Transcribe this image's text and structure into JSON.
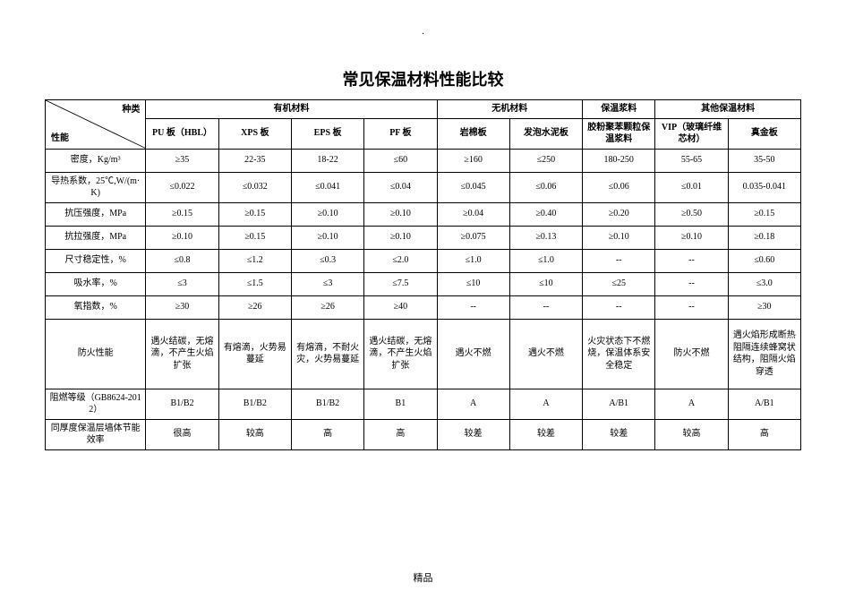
{
  "top_mark": ".",
  "title": "常见保温材料性能比较",
  "diag": {
    "top": "种类",
    "bottom": "性能"
  },
  "group_headers": [
    "有机材料",
    "无机材料",
    "保温浆料",
    "其他保温材料"
  ],
  "sub_headers": [
    "PU 板（HBL）",
    "XPS 板",
    "EPS 板",
    "PF 板",
    "岩棉板",
    "发泡水泥板",
    "胶粉聚苯颗粒保温浆料",
    "VIP（玻璃纤维芯材）",
    "真金板"
  ],
  "rows": [
    {
      "label": "密度，Kg/m³",
      "cells": [
        "≥35",
        "22-35",
        "18-22",
        "≤60",
        "≥160",
        "≤250",
        "180-250",
        "55-65",
        "35-50"
      ]
    },
    {
      "label": "导热系数，25℃,W/(m·K)",
      "cells": [
        "≤0.022",
        "≤0.032",
        "≤0.041",
        "≤0.04",
        "≤0.045",
        "≤0.06",
        "≤0.06",
        "≤0.01",
        "0.035-0.041"
      ]
    },
    {
      "label": "抗压强度，MPa",
      "cells": [
        "≥0.15",
        "≥0.15",
        "≥0.10",
        "≥0.10",
        "≥0.04",
        "≥0.40",
        "≥0.20",
        "≥0.50",
        "≥0.15"
      ]
    },
    {
      "label": "抗拉强度，MPa",
      "cells": [
        "≥0.10",
        "≥0.15",
        "≥0.10",
        "≥0.10",
        "≥0.075",
        "≥0.13",
        "≥0.10",
        "≥0.10",
        "≥0.18"
      ]
    },
    {
      "label": "尺寸稳定性，%",
      "cells": [
        "≤0.8",
        "≤1.2",
        "≤0.3",
        "≤2.0",
        "≤1.0",
        "≤1.0",
        "--",
        "--",
        "≤0.60"
      ]
    },
    {
      "label": "吸水率，%",
      "cells": [
        "≤3",
        "≤1.5",
        "≤3",
        "≤7.5",
        "≤10",
        "≤10",
        "≤25",
        "--",
        "≤3.0"
      ]
    },
    {
      "label": "氧指数，%",
      "cells": [
        "≥30",
        "≥26",
        "≥26",
        "≥40",
        "--",
        "--",
        "--",
        "--",
        "≥30"
      ]
    },
    {
      "label": "防火性能",
      "fire": true,
      "cells": [
        "遇火结碳，无熔滴，不产生火焰扩张",
        "有熔滴，火势易蔓延",
        "有熔滴，不耐火灾，火势易蔓延",
        "遇火结碳，无熔滴，不产生火焰扩张",
        "遇火不燃",
        "遇火不燃",
        "火灾状态下不燃烧，保温体系安全稳定",
        "防火不燃",
        "遇火焰形成断热阻隔连续蜂窝状结构，阻隔火焰穿透"
      ]
    },
    {
      "label": "阻燃等级（GB8624-2012）",
      "cells": [
        "B1/B2",
        "B1/B2",
        "B1/B2",
        "B1",
        "A",
        "A",
        "A/B1",
        "A",
        "A/B1"
      ]
    },
    {
      "label": "同厚度保温层墙体节能效率",
      "cells": [
        "很高",
        "较高",
        "高",
        "高",
        "较差",
        "较差",
        "较差",
        "较高",
        "高"
      ]
    }
  ],
  "footer": "精品"
}
